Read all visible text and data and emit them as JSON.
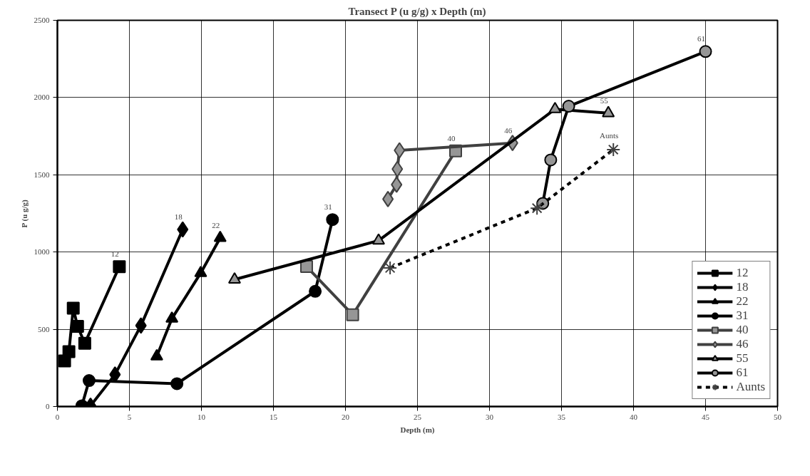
{
  "chart_data": {
    "type": "line",
    "title": "Transect P (u g/g) x Depth (m)",
    "xlabel": "Depth (m)",
    "ylabel": "P (u g/g)",
    "xlim": [
      0,
      50
    ],
    "xticks": [
      0,
      5,
      10,
      15,
      20,
      25,
      30,
      35,
      40,
      45,
      50
    ],
    "ylim": [
      0,
      2500
    ],
    "yticks": [
      0,
      500,
      1000,
      1500,
      2000,
      2500
    ],
    "grid": true,
    "legend": "bottom right",
    "line_style": "solid",
    "series": [
      {
        "name": "12",
        "color": "#000000",
        "marker": "square",
        "x": [
          0.5,
          0.8,
          1.1,
          1.4,
          1.9,
          4.3
        ],
        "values": [
          295,
          355,
          636,
          519,
          409,
          905
        ]
      },
      {
        "name": "18",
        "color": "#000000",
        "marker": "diamond",
        "x": [
          2.3,
          4.0,
          5.8,
          8.7
        ],
        "values": [
          5,
          207,
          524,
          1146
        ]
      },
      {
        "name": "22",
        "color": "#000000",
        "marker": "triangle",
        "x": [
          6.9,
          7.95,
          9.95,
          11.3
        ],
        "values": [
          325,
          569,
          864,
          1091
        ]
      },
      {
        "name": "31",
        "color": "#000000",
        "marker": "circle",
        "x": [
          1.7,
          2.2,
          8.3,
          17.9,
          19.1
        ],
        "values": [
          5,
          168,
          148,
          746,
          1210
        ]
      },
      {
        "name": "40",
        "color": "#404040",
        "colors": [
          "#969696",
          "#969696",
          "#969696"
        ],
        "marker": "square",
        "x": [
          17.3,
          20.5,
          27.65
        ],
        "values": [
          906,
          594,
          1655
        ]
      },
      {
        "name": "46",
        "color": "#404040",
        "colors": [
          "#969696",
          "#969696",
          "#969696",
          "#969696",
          "#969696"
        ],
        "marker": "diamond",
        "x": [
          22.95,
          23.55,
          23.6,
          23.75,
          31.6
        ],
        "values": [
          1343,
          1436,
          1537,
          1658,
          1706
        ]
      },
      {
        "name": "55",
        "color": "#000000",
        "colors": [
          "#969696",
          "#969696",
          "#969696",
          "#969696"
        ],
        "marker": "triangle",
        "x": [
          12.3,
          22.3,
          34.55,
          38.25
        ],
        "values": [
          822,
          1074,
          1925,
          1899
        ]
      },
      {
        "name": "61",
        "color": "#000000",
        "colors": [
          "#969696",
          "#969696",
          "#969696",
          "#969696"
        ],
        "marker": "circle",
        "x": [
          33.7,
          34.25,
          35.5,
          45.0
        ],
        "values": [
          1315,
          1596,
          1944,
          2298
        ]
      },
      {
        "name": "Aunts",
        "color": "#000000",
        "marker": "cross",
        "line_style": "dashed",
        "x": [
          23.1,
          33.3,
          38.6
        ],
        "values": [
          897,
          1284,
          1663
        ]
      }
    ],
    "annotations": [
      {
        "text": "12",
        "x": 4.3,
        "y": 905
      },
      {
        "text": "18",
        "x": 8.7,
        "y": 1146
      },
      {
        "text": "22",
        "x": 11.3,
        "y": 1091
      },
      {
        "text": "31",
        "x": 19.1,
        "y": 1210
      },
      {
        "text": "40",
        "x": 27.65,
        "y": 1655
      },
      {
        "text": "46",
        "x": 31.6,
        "y": 1706
      },
      {
        "text": "55",
        "x": 38.25,
        "y": 1899
      },
      {
        "text": "61",
        "x": 45.0,
        "y": 2298
      },
      {
        "text": "Aunts",
        "x": 38.6,
        "y": 1663
      }
    ]
  }
}
